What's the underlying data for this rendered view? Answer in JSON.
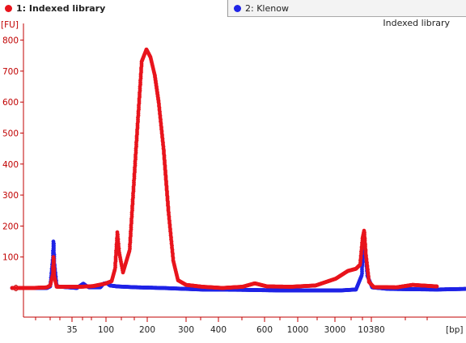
{
  "tabs": [
    {
      "label": "1: Indexed library",
      "color": "#e8141c",
      "active": true
    },
    {
      "label": "2: Klenow",
      "color": "#1f23e6",
      "active": false
    }
  ],
  "colors": {
    "axis": "#c00000",
    "sample1": "#e8141c",
    "sample2": "#1f23e6"
  },
  "chart_data": {
    "type": "scatter",
    "title": "Indexed library",
    "ylabel": "[FU]",
    "xlabel": "[bp]",
    "ylim": [
      -10,
      830
    ],
    "yticks": [
      0,
      100,
      200,
      300,
      400,
      500,
      600,
      700,
      800
    ],
    "xtick_labels": [
      "35",
      "100",
      "200",
      "300",
      "400",
      "600",
      "1000",
      "3000",
      "10380"
    ],
    "grid": false,
    "series": [
      {
        "name": "1: Indexed library",
        "color": "#e8141c",
        "points": [
          [
            15,
            0
          ],
          [
            40,
            0
          ],
          [
            58,
            2
          ],
          [
            62,
            8
          ],
          [
            65,
            40
          ],
          [
            66,
            100
          ],
          [
            67,
            40
          ],
          [
            70,
            4
          ],
          [
            100,
            4
          ],
          [
            115,
            6
          ],
          [
            130,
            14
          ],
          [
            138,
            22
          ],
          [
            142,
            60
          ],
          [
            145,
            180
          ],
          [
            147,
            120
          ],
          [
            152,
            50
          ],
          [
            160,
            120
          ],
          [
            168,
            450
          ],
          [
            175,
            730
          ],
          [
            181,
            770
          ],
          [
            186,
            745
          ],
          [
            191,
            690
          ],
          [
            196,
            600
          ],
          [
            202,
            450
          ],
          [
            208,
            250
          ],
          [
            214,
            90
          ],
          [
            220,
            25
          ],
          [
            230,
            10
          ],
          [
            250,
            4
          ],
          [
            275,
            0
          ],
          [
            300,
            4
          ],
          [
            315,
            15
          ],
          [
            330,
            5
          ],
          [
            360,
            4
          ],
          [
            390,
            8
          ],
          [
            415,
            30
          ],
          [
            430,
            55
          ],
          [
            440,
            62
          ],
          [
            445,
            75
          ],
          [
            448,
            160
          ],
          [
            450,
            185
          ],
          [
            452,
            110
          ],
          [
            456,
            20
          ],
          [
            462,
            3
          ],
          [
            490,
            2
          ],
          [
            510,
            10
          ],
          [
            540,
            5
          ]
        ]
      },
      {
        "name": "2: Klenow",
        "color": "#1f23e6",
        "points": [
          [
            15,
            0
          ],
          [
            40,
            0
          ],
          [
            58,
            0
          ],
          [
            62,
            5
          ],
          [
            65,
            90
          ],
          [
            66,
            150
          ],
          [
            67,
            80
          ],
          [
            70,
            5
          ],
          [
            95,
            0
          ],
          [
            103,
            14
          ],
          [
            106,
            8
          ],
          [
            110,
            2
          ],
          [
            124,
            2
          ],
          [
            128,
            14
          ],
          [
            132,
            16
          ],
          [
            136,
            8
          ],
          [
            145,
            5
          ],
          [
            170,
            2
          ],
          [
            200,
            0
          ],
          [
            250,
            -5
          ],
          [
            300,
            -6
          ],
          [
            350,
            -8
          ],
          [
            420,
            -8
          ],
          [
            440,
            -5
          ],
          [
            447,
            40
          ],
          [
            449,
            150
          ],
          [
            451,
            130
          ],
          [
            454,
            40
          ],
          [
            460,
            2
          ],
          [
            480,
            -3
          ],
          [
            540,
            -5
          ],
          [
            576,
            -3
          ]
        ]
      }
    ]
  }
}
